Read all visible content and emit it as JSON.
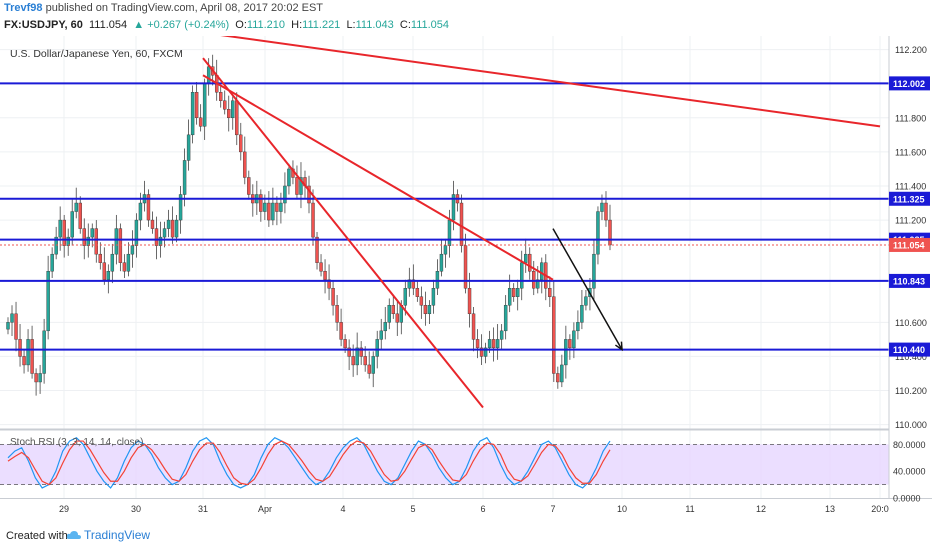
{
  "header": {
    "author": "Trevf98",
    "published": "published on TradingView.com, April 08, 2017 20:02 EST",
    "symbol": "FX:USDJPY, 60",
    "last": "111.054",
    "change": "▲ +0.267 (+0.24%)",
    "o_label": "O:",
    "o": "111.210",
    "h_label": "H:",
    "h": "111.221",
    "l_label": "L:",
    "l": "111.043",
    "c_label": "C:",
    "c": "111.054"
  },
  "footer": {
    "created": "Created with",
    "brand": "TradingView"
  },
  "colors": {
    "level_line": "#1a1ad6",
    "trend_line": "#e8262b",
    "up_candle": "#26a69a",
    "down_candle": "#ef5350",
    "rsi_k": "#2196f3",
    "rsi_d": "#f44336",
    "rsi_band": "#e6d6ff",
    "arrow": "#111111"
  },
  "chart_data": [
    {
      "type": "candlestick",
      "title": "U.S. Dollar/Japanese Yen, 60, FXCM",
      "x_tick_labels": [
        "29",
        "30",
        "31",
        "Apr",
        "4",
        "5",
        "6",
        "7",
        "10",
        "11",
        "12",
        "13",
        "20:0"
      ],
      "y_tick_labels": [
        "112.200",
        "111.800",
        "111.600",
        "111.400",
        "111.200",
        "110.600",
        "110.400",
        "110.200",
        "110.000"
      ],
      "ylim": [
        109.98,
        112.28
      ],
      "horizontal_levels": [
        {
          "label": "112.002",
          "value": 112.002
        },
        {
          "label": "111.325",
          "value": 111.325
        },
        {
          "label": "111.085",
          "value": 111.085
        },
        {
          "label": "110.843",
          "value": 110.843
        },
        {
          "label": "110.440",
          "value": 110.44
        }
      ],
      "last_price": {
        "label": "111.054",
        "value": 111.054
      },
      "close_series": [
        110.6,
        110.65,
        110.5,
        110.4,
        110.35,
        110.5,
        110.3,
        110.25,
        110.3,
        110.55,
        110.9,
        111.0,
        111.1,
        111.2,
        111.05,
        111.1,
        111.25,
        111.3,
        111.15,
        111.05,
        111.1,
        111.15,
        111.0,
        110.95,
        110.85,
        110.9,
        111.0,
        111.15,
        110.95,
        110.9,
        111.0,
        111.05,
        111.2,
        111.3,
        111.35,
        111.2,
        111.15,
        111.05,
        111.1,
        111.15,
        111.2,
        111.1,
        111.2,
        111.35,
        111.55,
        111.7,
        111.95,
        111.8,
        111.75,
        112.0,
        112.1,
        112.05,
        111.95,
        111.9,
        111.85,
        111.8,
        111.9,
        111.7,
        111.6,
        111.45,
        111.35,
        111.3,
        111.35,
        111.25,
        111.3,
        111.2,
        111.3,
        111.25,
        111.3,
        111.4,
        111.5,
        111.45,
        111.35,
        111.45,
        111.4,
        111.3,
        111.1,
        110.95,
        110.9,
        110.85,
        110.8,
        110.7,
        110.6,
        110.5,
        110.45,
        110.4,
        110.35,
        110.45,
        110.4,
        110.35,
        110.3,
        110.4,
        110.5,
        110.55,
        110.6,
        110.7,
        110.65,
        110.6,
        110.7,
        110.8,
        110.85,
        110.8,
        110.75,
        110.7,
        110.65,
        110.7,
        110.8,
        110.9,
        111.0,
        111.05,
        111.2,
        111.35,
        111.3,
        111.05,
        110.8,
        110.65,
        110.5,
        110.45,
        110.4,
        110.45,
        110.5,
        110.45,
        110.5,
        110.55,
        110.7,
        110.8,
        110.75,
        110.8,
        110.95,
        111.0,
        110.9,
        110.8,
        110.85,
        110.95,
        110.8,
        110.75,
        110.3,
        110.25,
        110.35,
        110.5,
        110.45,
        110.55,
        110.6,
        110.7,
        110.75,
        110.8,
        111.0,
        111.25,
        111.3,
        111.2,
        111.054
      ],
      "annotations": [
        {
          "type": "trendline",
          "from": [
            "31",
            112.3
          ],
          "to": [
            "20:0",
            111.75
          ]
        },
        {
          "type": "trendline",
          "from": [
            "31",
            112.15
          ],
          "to": [
            "6",
            110.1
          ]
        },
        {
          "type": "trendline",
          "from": [
            "31",
            112.05
          ],
          "to": [
            "7",
            110.85
          ]
        },
        {
          "type": "arrow",
          "from": [
            "7",
            111.15
          ],
          "to": [
            "10",
            110.44
          ]
        }
      ]
    },
    {
      "type": "line",
      "title": "Stoch RSI (3, 3, 14, 14, close)",
      "y_tick_labels": [
        "80.0000",
        "40.0000",
        "0.0000"
      ],
      "ylim": [
        0,
        100
      ],
      "band": [
        20,
        80
      ],
      "series": [
        {
          "values": [
            60,
            70,
            75,
            55,
            30,
            15,
            20,
            40,
            70,
            85,
            90,
            80,
            60,
            40,
            25,
            15,
            30,
            55,
            75,
            85,
            80,
            65,
            45,
            30,
            20,
            25,
            45,
            70,
            85,
            90,
            80,
            55,
            35,
            20,
            15,
            20,
            35,
            60,
            80,
            90,
            85,
            75,
            60,
            45,
            30,
            20,
            25,
            40,
            60,
            75,
            85,
            90,
            80,
            60,
            40,
            25,
            20,
            30,
            50,
            70,
            85,
            80,
            65,
            45,
            30,
            20,
            25,
            45,
            70,
            85,
            90,
            75,
            50,
            30,
            20,
            25,
            40,
            60,
            80,
            85,
            75,
            55,
            35,
            20,
            15,
            25,
            45,
            70,
            85
          ]
        },
        {
          "values": [
            55,
            62,
            68,
            60,
            42,
            25,
            20,
            30,
            52,
            72,
            85,
            85,
            72,
            55,
            38,
            25,
            25,
            40,
            60,
            75,
            80,
            72,
            58,
            42,
            28,
            25,
            35,
            55,
            72,
            82,
            82,
            68,
            48,
            30,
            22,
            20,
            28,
            45,
            65,
            80,
            85,
            80,
            68,
            55,
            40,
            28,
            25,
            32,
            48,
            65,
            78,
            85,
            82,
            70,
            52,
            35,
            25,
            27,
            40,
            58,
            75,
            80,
            72,
            55,
            40,
            27,
            25,
            35,
            55,
            72,
            82,
            80,
            65,
            42,
            28,
            25,
            33,
            50,
            68,
            80,
            78,
            65,
            45,
            30,
            22,
            22,
            35,
            55,
            72
          ]
        }
      ]
    }
  ]
}
